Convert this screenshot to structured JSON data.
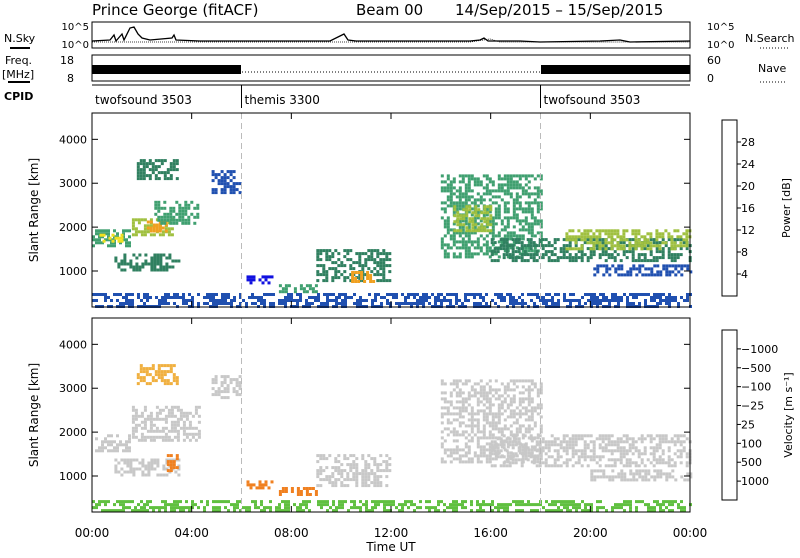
{
  "header": {
    "station": "Prince George (fitACF)",
    "beam": "Beam 00",
    "date_range": "14/Sep/2015 – 15/Sep/2015"
  },
  "left_labels": {
    "nsky": "N.Sky",
    "freq_line1": "Freq.",
    "freq_line2": "[MHz]",
    "cpid": "CPID"
  },
  "right_labels": {
    "nsearch": "N.Search",
    "nave": "Nave"
  },
  "noise_panel": {
    "left_ticks": [
      "10^5",
      "10^0"
    ],
    "right_ticks": [
      "10^5",
      "10^0"
    ]
  },
  "freq_panel": {
    "left_ticks": [
      "18",
      "8"
    ],
    "right_ticks": [
      "60",
      "0"
    ]
  },
  "cpid_segments": [
    {
      "label": "twofsound 3503",
      "start_hr": 0,
      "end_hr": 6
    },
    {
      "label": "themis 3300",
      "start_hr": 6,
      "end_hr": 18
    },
    {
      "label": "twofsound 3503",
      "start_hr": 18,
      "end_hr": 24
    }
  ],
  "power_colorbar": {
    "label": "Power [dB]",
    "colors": [
      "#1010e0",
      "#2050b0",
      "#308060",
      "#40a070",
      "#a0c040",
      "#f0e020",
      "#f0a020",
      "#e06010",
      "#c81010"
    ],
    "ticks": [
      "4",
      "8",
      "12",
      "16",
      "20",
      "24",
      "28"
    ]
  },
  "velocity_colorbar": {
    "label": "Velocity [m s⁻¹]",
    "colors": [
      "#e01010",
      "#e05010",
      "#f08020",
      "#f0b040",
      "#c8c8c8",
      "#c8c8c8",
      "#60c040",
      "#308060",
      "#2050b0",
      "#1010e0"
    ],
    "ticks": [
      "1000",
      "500",
      "100",
      "25",
      "−25",
      "−100",
      "−500",
      "−1000"
    ]
  },
  "chart_data": {
    "type": "heatmap",
    "xlabel": "Time UT",
    "x_ticks": [
      "00:00",
      "04:00",
      "08:00",
      "12:00",
      "16:00",
      "20:00",
      "00:00"
    ],
    "x_range_hr": [
      0,
      24
    ],
    "ylabel": "Slant Range [km]",
    "y_ticks": [
      1000,
      2000,
      3000,
      4000
    ],
    "y_range_km": [
      180,
      4600
    ],
    "cpid_boundaries_hr": [
      6,
      18
    ],
    "power_patches": [
      {
        "t0": 0.0,
        "t1": 1.5,
        "r0": 1600,
        "r1": 1950,
        "color": "#40a070"
      },
      {
        "t0": 0.3,
        "t1": 1.2,
        "r0": 1700,
        "r1": 1850,
        "color": "#f0e020"
      },
      {
        "t0": 1.6,
        "t1": 3.2,
        "r0": 1800,
        "r1": 2200,
        "color": "#a0c040"
      },
      {
        "t0": 2.2,
        "t1": 3.0,
        "r0": 1900,
        "r1": 2150,
        "color": "#f0a020"
      },
      {
        "t0": 2.5,
        "t1": 4.3,
        "r0": 2100,
        "r1": 2600,
        "color": "#40a070"
      },
      {
        "t0": 1.8,
        "t1": 3.4,
        "r0": 3100,
        "r1": 3550,
        "color": "#308060"
      },
      {
        "t0": 0.9,
        "t1": 3.5,
        "r0": 1050,
        "r1": 1400,
        "color": "#308060"
      },
      {
        "t0": 4.8,
        "t1": 5.9,
        "r0": 2800,
        "r1": 3300,
        "color": "#2050b0"
      },
      {
        "t0": 6.2,
        "t1": 7.2,
        "r0": 700,
        "r1": 900,
        "color": "#1010e0"
      },
      {
        "t0": 7.5,
        "t1": 9.0,
        "r0": 550,
        "r1": 700,
        "color": "#40a070"
      },
      {
        "t0": 9.0,
        "t1": 12.0,
        "r0": 800,
        "r1": 1500,
        "color": "#308060"
      },
      {
        "t0": 10.4,
        "t1": 11.4,
        "r0": 750,
        "r1": 1000,
        "color": "#f0a020"
      },
      {
        "t0": 14.0,
        "t1": 18.0,
        "r0": 1300,
        "r1": 3200,
        "color": "#40a070"
      },
      {
        "t0": 14.5,
        "t1": 16.0,
        "r0": 1900,
        "r1": 2500,
        "color": "#a0c040"
      },
      {
        "t0": 16.0,
        "t1": 24.0,
        "r0": 1250,
        "r1": 1750,
        "color": "#308060"
      },
      {
        "t0": 19.0,
        "t1": 24.0,
        "r0": 1500,
        "r1": 1950,
        "color": "#a0c040"
      },
      {
        "t0": 20.0,
        "t1": 24.0,
        "r0": 900,
        "r1": 1150,
        "color": "#2050b0"
      },
      {
        "t0": 0.0,
        "t1": 24.0,
        "r0": 200,
        "r1": 500,
        "color": "#2050b0"
      }
    ],
    "velocity_patches": [
      {
        "t0": 0.0,
        "t1": 1.5,
        "r0": 1600,
        "r1": 1950,
        "color": "#c8c8c8"
      },
      {
        "t0": 1.6,
        "t1": 4.3,
        "r0": 1800,
        "r1": 2600,
        "color": "#c8c8c8"
      },
      {
        "t0": 1.8,
        "t1": 3.4,
        "r0": 3100,
        "r1": 3550,
        "color": "#f0b040"
      },
      {
        "t0": 0.9,
        "t1": 3.5,
        "r0": 1050,
        "r1": 1400,
        "color": "#c8c8c8"
      },
      {
        "t0": 3.0,
        "t1": 3.4,
        "r0": 1150,
        "r1": 1500,
        "color": "#f08020"
      },
      {
        "t0": 4.8,
        "t1": 5.9,
        "r0": 2800,
        "r1": 3300,
        "color": "#c8c8c8"
      },
      {
        "t0": 6.2,
        "t1": 7.2,
        "r0": 700,
        "r1": 900,
        "color": "#f08020"
      },
      {
        "t0": 7.5,
        "t1": 9.0,
        "r0": 550,
        "r1": 750,
        "color": "#f08020"
      },
      {
        "t0": 9.0,
        "t1": 12.0,
        "r0": 800,
        "r1": 1500,
        "color": "#c8c8c8"
      },
      {
        "t0": 14.0,
        "t1": 18.0,
        "r0": 1300,
        "r1": 3200,
        "color": "#c8c8c8"
      },
      {
        "t0": 16.0,
        "t1": 24.0,
        "r0": 1250,
        "r1": 1950,
        "color": "#c8c8c8"
      },
      {
        "t0": 20.0,
        "t1": 24.0,
        "r0": 900,
        "r1": 1150,
        "color": "#c8c8c8"
      },
      {
        "t0": 0.0,
        "t1": 24.0,
        "r0": 200,
        "r1": 450,
        "color": "#60c040"
      }
    ]
  }
}
